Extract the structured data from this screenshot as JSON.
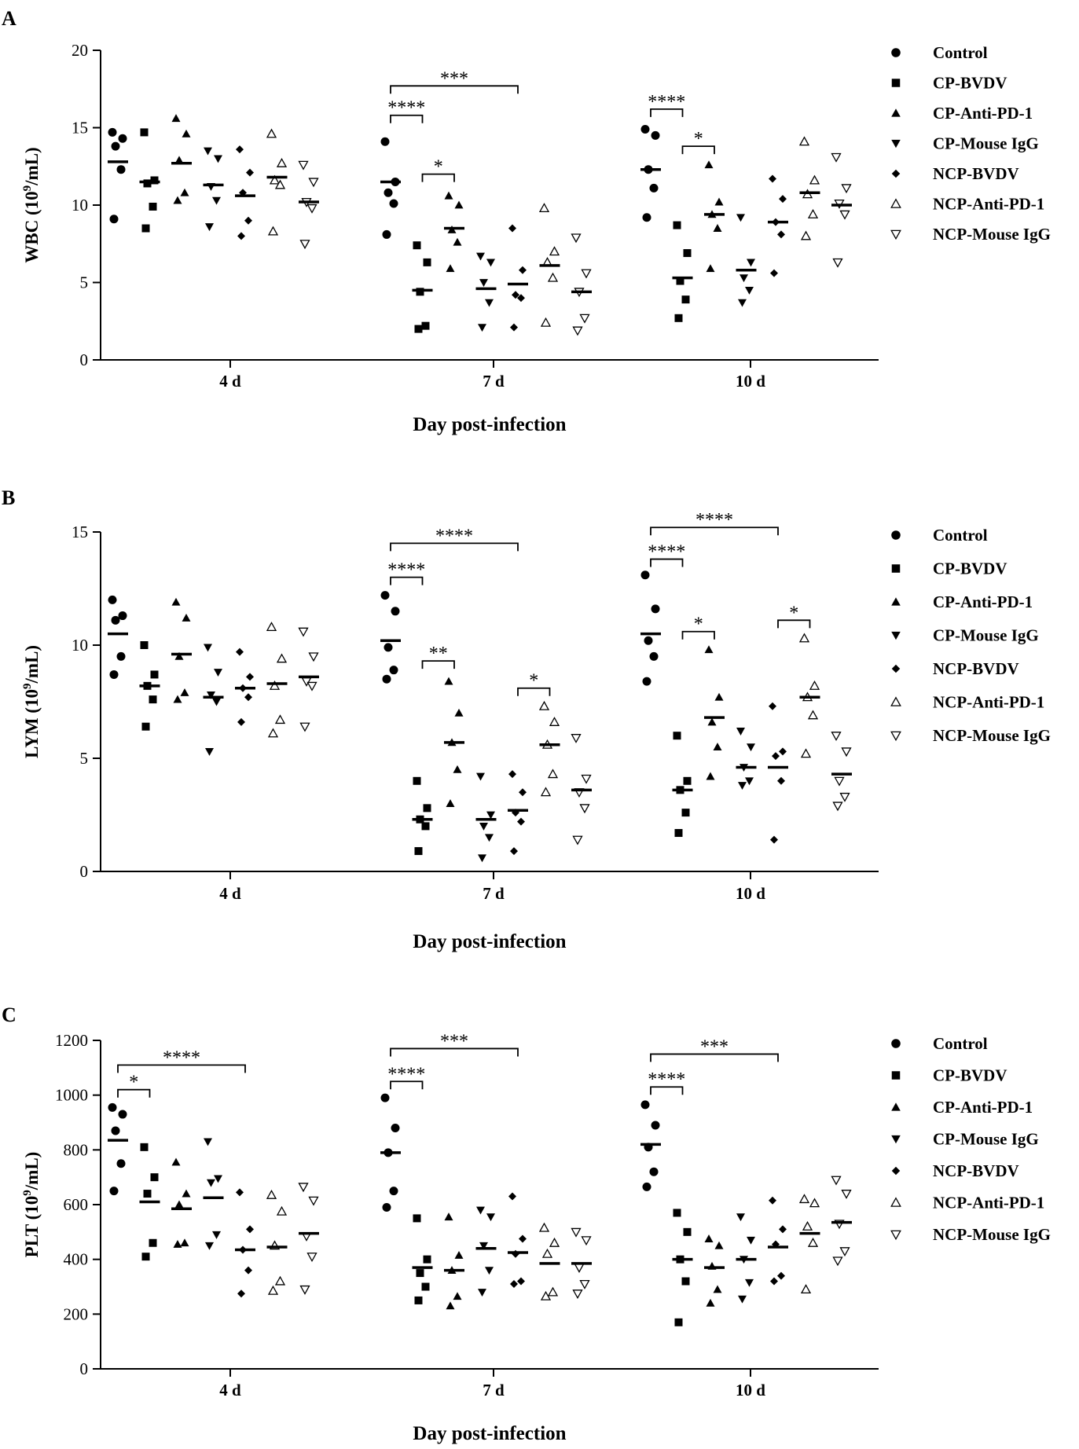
{
  "chart_data": [
    {
      "type": "scatter",
      "panel_label": "A",
      "ylabel_main": "WBC (10",
      "ylabel_sup": "9",
      "ylabel_tail": "/mL)",
      "xlabel": "Day post-infection",
      "ylim": [
        0,
        20
      ],
      "yticks": [
        "0",
        "5",
        "10",
        "15",
        "20"
      ],
      "categories": [
        "4 d",
        "7 d",
        "10 d"
      ],
      "legend": [
        "Control",
        "CP-BVDV",
        "CP-Anti-PD-1",
        "CP-Mouse IgG",
        "NCP-BVDV",
        "NCP-Anti-PD-1",
        "NCP-Mouse IgG"
      ],
      "series": [
        {
          "name": "Control",
          "values": [
            [
              14.7,
              14.3,
              13.8,
              12.3,
              9.1
            ],
            [
              14.1,
              11.5,
              10.8,
              10.1,
              8.1
            ],
            [
              14.9,
              14.5,
              12.3,
              11.1,
              9.2
            ]
          ],
          "means": [
            12.8,
            11.5,
            12.3
          ]
        },
        {
          "name": "CP-BVDV",
          "values": [
            [
              14.7,
              11.6,
              11.4,
              9.9,
              8.5
            ],
            [
              7.4,
              6.3,
              4.4,
              2.2,
              2.0
            ],
            [
              8.7,
              6.9,
              5.1,
              3.9,
              2.7
            ]
          ],
          "means": [
            11.5,
            4.5,
            5.3
          ]
        },
        {
          "name": "CP-Anti-PD-1",
          "values": [
            [
              15.6,
              14.6,
              12.9,
              10.8,
              10.3
            ],
            [
              10.6,
              10.0,
              8.4,
              7.6,
              5.9
            ],
            [
              12.6,
              10.2,
              9.4,
              8.5,
              5.9
            ]
          ],
          "means": [
            12.7,
            8.5,
            9.4
          ]
        },
        {
          "name": "CP-Mouse IgG",
          "values": [
            [
              13.5,
              13.0,
              11.2,
              10.3,
              8.6
            ],
            [
              6.7,
              6.3,
              5.0,
              3.7,
              2.1
            ],
            [
              9.2,
              6.3,
              5.3,
              4.5,
              3.7
            ]
          ],
          "means": [
            11.3,
            4.6,
            5.8
          ]
        },
        {
          "name": "NCP-BVDV",
          "values": [
            [
              13.6,
              12.1,
              10.8,
              9.0,
              8.0
            ],
            [
              8.5,
              5.8,
              4.2,
              4.0,
              2.1
            ],
            [
              11.7,
              10.4,
              8.9,
              8.1,
              5.6
            ]
          ],
          "means": [
            10.6,
            4.9,
            8.9
          ]
        },
        {
          "name": "NCP-Anti-PD-1",
          "values": [
            [
              14.6,
              12.7,
              11.6,
              11.3,
              8.3
            ],
            [
              9.8,
              7.0,
              6.3,
              5.3,
              2.4
            ],
            [
              14.1,
              11.6,
              10.7,
              9.4,
              8.0
            ]
          ],
          "means": [
            11.8,
            6.1,
            10.8
          ]
        },
        {
          "name": "NCP-Mouse IgG",
          "values": [
            [
              12.6,
              11.5,
              10.2,
              9.8,
              7.5
            ],
            [
              7.9,
              5.6,
              4.4,
              2.7,
              1.9
            ],
            [
              13.1,
              11.1,
              10.1,
              9.4,
              6.3
            ]
          ],
          "means": [
            10.2,
            4.4,
            10.0
          ]
        }
      ],
      "significance": [
        {
          "group": 1,
          "from": 0,
          "to": 4,
          "label": "***",
          "y": 17.7
        },
        {
          "group": 1,
          "from": 0,
          "to": 1,
          "label": "****",
          "y": 15.8
        },
        {
          "group": 1,
          "from": 1,
          "to": 2,
          "label": "*",
          "y": 12.0
        },
        {
          "group": 2,
          "from": 0,
          "to": 1,
          "label": "****",
          "y": 16.2
        },
        {
          "group": 2,
          "from": 1,
          "to": 2,
          "label": "*",
          "y": 13.8
        }
      ]
    },
    {
      "type": "scatter",
      "panel_label": "B",
      "ylabel_main": "LYM (10",
      "ylabel_sup": "9",
      "ylabel_tail": "/mL)",
      "xlabel": "Day post-infection",
      "ylim": [
        0,
        15
      ],
      "yticks": [
        "0",
        "5",
        "10",
        "15"
      ],
      "categories": [
        "4 d",
        "7 d",
        "10 d"
      ],
      "legend": [
        "Control",
        "CP-BVDV",
        "CP-Anti-PD-1",
        "CP-Mouse IgG",
        "NCP-BVDV",
        "NCP-Anti-PD-1",
        "NCP-Mouse IgG"
      ],
      "series": [
        {
          "name": "Control",
          "values": [
            [
              12.0,
              11.3,
              11.1,
              9.5,
              8.7
            ],
            [
              12.2,
              11.5,
              9.9,
              8.9,
              8.5
            ],
            [
              13.1,
              11.6,
              10.2,
              9.5,
              8.4
            ]
          ],
          "means": [
            10.5,
            10.2,
            10.5
          ]
        },
        {
          "name": "CP-BVDV",
          "values": [
            [
              10.0,
              8.7,
              8.2,
              7.6,
              6.4
            ],
            [
              4.0,
              2.8,
              2.3,
              2.0,
              0.9
            ],
            [
              6.0,
              4.0,
              3.6,
              2.6,
              1.7
            ]
          ],
          "means": [
            8.2,
            2.3,
            3.6
          ]
        },
        {
          "name": "CP-Anti-PD-1",
          "values": [
            [
              11.9,
              11.2,
              9.5,
              7.9,
              7.6
            ],
            [
              8.4,
              7.0,
              5.7,
              4.5,
              3.0
            ],
            [
              9.8,
              7.7,
              6.6,
              5.5,
              4.2
            ]
          ],
          "means": [
            9.6,
            5.7,
            6.8
          ]
        },
        {
          "name": "CP-Mouse IgG",
          "values": [
            [
              9.9,
              8.8,
              7.8,
              7.5,
              5.3
            ],
            [
              4.2,
              2.5,
              2.0,
              1.5,
              0.6
            ],
            [
              6.2,
              5.5,
              4.6,
              4.0,
              3.8
            ]
          ],
          "means": [
            7.7,
            2.3,
            4.6
          ]
        },
        {
          "name": "NCP-BVDV",
          "values": [
            [
              9.7,
              8.6,
              8.1,
              7.7,
              6.6
            ],
            [
              4.3,
              3.5,
              2.6,
              2.2,
              0.9
            ],
            [
              7.3,
              5.3,
              5.1,
              4.0,
              1.4
            ]
          ],
          "means": [
            8.1,
            2.7,
            4.6
          ]
        },
        {
          "name": "NCP-Anti-PD-1",
          "values": [
            [
              10.8,
              9.4,
              8.2,
              6.7,
              6.1
            ],
            [
              7.3,
              6.6,
              5.6,
              4.3,
              3.5
            ],
            [
              10.3,
              8.2,
              7.7,
              6.9,
              5.2
            ]
          ],
          "means": [
            8.3,
            5.6,
            7.7
          ]
        },
        {
          "name": "NCP-Mouse IgG",
          "values": [
            [
              10.6,
              9.5,
              8.4,
              8.2,
              6.4
            ],
            [
              5.9,
              4.1,
              3.5,
              2.8,
              1.4
            ],
            [
              6.0,
              5.3,
              4.0,
              3.3,
              2.9
            ]
          ],
          "means": [
            8.6,
            3.6,
            4.3
          ]
        }
      ],
      "significance": [
        {
          "group": 1,
          "from": 0,
          "to": 4,
          "label": "****",
          "y": 14.5
        },
        {
          "group": 1,
          "from": 0,
          "to": 1,
          "label": "****",
          "y": 13.0
        },
        {
          "group": 1,
          "from": 1,
          "to": 2,
          "label": "**",
          "y": 9.3
        },
        {
          "group": 1,
          "from": 4,
          "to": 5,
          "label": "*",
          "y": 8.1
        },
        {
          "group": 2,
          "from": 0,
          "to": 4,
          "label": "****",
          "y": 15.2
        },
        {
          "group": 2,
          "from": 0,
          "to": 1,
          "label": "****",
          "y": 13.8
        },
        {
          "group": 2,
          "from": 1,
          "to": 2,
          "label": "*",
          "y": 10.6
        },
        {
          "group": 2,
          "from": 4,
          "to": 5,
          "label": "*",
          "y": 11.1
        }
      ]
    },
    {
      "type": "scatter",
      "panel_label": "C",
      "ylabel_main": "PLT (10",
      "ylabel_sup": "9",
      "ylabel_tail": "/mL)",
      "xlabel": "Day post-infection",
      "ylim": [
        0,
        1200
      ],
      "yticks": [
        "0",
        "200",
        "400",
        "600",
        "800",
        "1000",
        "1200"
      ],
      "categories": [
        "4 d",
        "7 d",
        "10 d"
      ],
      "legend": [
        "Control",
        "CP-BVDV",
        "CP-Anti-PD-1",
        "CP-Mouse IgG",
        "NCP-BVDV",
        "NCP-Anti-PD-1",
        "NCP-Mouse IgG"
      ],
      "series": [
        {
          "name": "Control",
          "values": [
            [
              955,
              930,
              870,
              750,
              650
            ],
            [
              990,
              880,
              790,
              650,
              590
            ],
            [
              965,
              890,
              810,
              720,
              665
            ]
          ],
          "means": [
            835,
            790,
            820
          ]
        },
        {
          "name": "CP-BVDV",
          "values": [
            [
              810,
              700,
              640,
              460,
              410
            ],
            [
              550,
              400,
              350,
              300,
              250
            ],
            [
              570,
              500,
              400,
              320,
              170
            ]
          ],
          "means": [
            610,
            370,
            400
          ]
        },
        {
          "name": "CP-Anti-PD-1",
          "values": [
            [
              755,
              640,
              600,
              460,
              455
            ],
            [
              555,
              415,
              360,
              265,
              230
            ],
            [
              475,
              450,
              375,
              290,
              240
            ]
          ],
          "means": [
            585,
            360,
            370
          ]
        },
        {
          "name": "CP-Mouse IgG",
          "values": [
            [
              830,
              695,
              680,
              490,
              450
            ],
            [
              580,
              555,
              450,
              360,
              280
            ],
            [
              555,
              470,
              400,
              315,
              255
            ]
          ],
          "means": [
            625,
            440,
            400
          ]
        },
        {
          "name": "NCP-BVDV",
          "values": [
            [
              645,
              510,
              435,
              360,
              275
            ],
            [
              630,
              475,
              420,
              320,
              310
            ],
            [
              615,
              510,
              455,
              340,
              320
            ]
          ],
          "means": [
            435,
            425,
            445
          ]
        },
        {
          "name": "NCP-Anti-PD-1",
          "values": [
            [
              635,
              575,
              450,
              320,
              285
            ],
            [
              515,
              460,
              420,
              280,
              265
            ],
            [
              620,
              605,
              520,
              460,
              290
            ]
          ],
          "means": [
            445,
            385,
            495
          ]
        },
        {
          "name": "NCP-Mouse IgG",
          "values": [
            [
              665,
              615,
              485,
              410,
              290
            ],
            [
              500,
              470,
              370,
              310,
              275
            ],
            [
              690,
              640,
              530,
              430,
              395
            ]
          ],
          "means": [
            495,
            385,
            535
          ]
        }
      ],
      "significance": [
        {
          "group": 0,
          "from": 0,
          "to": 4,
          "label": "****",
          "y": 1110
        },
        {
          "group": 0,
          "from": 0,
          "to": 1,
          "label": "*",
          "y": 1020
        },
        {
          "group": 1,
          "from": 0,
          "to": 4,
          "label": "***",
          "y": 1170
        },
        {
          "group": 1,
          "from": 0,
          "to": 1,
          "label": "****",
          "y": 1050
        },
        {
          "group": 2,
          "from": 0,
          "to": 4,
          "label": "***",
          "y": 1150
        },
        {
          "group": 2,
          "from": 0,
          "to": 1,
          "label": "****",
          "y": 1030
        }
      ]
    }
  ]
}
